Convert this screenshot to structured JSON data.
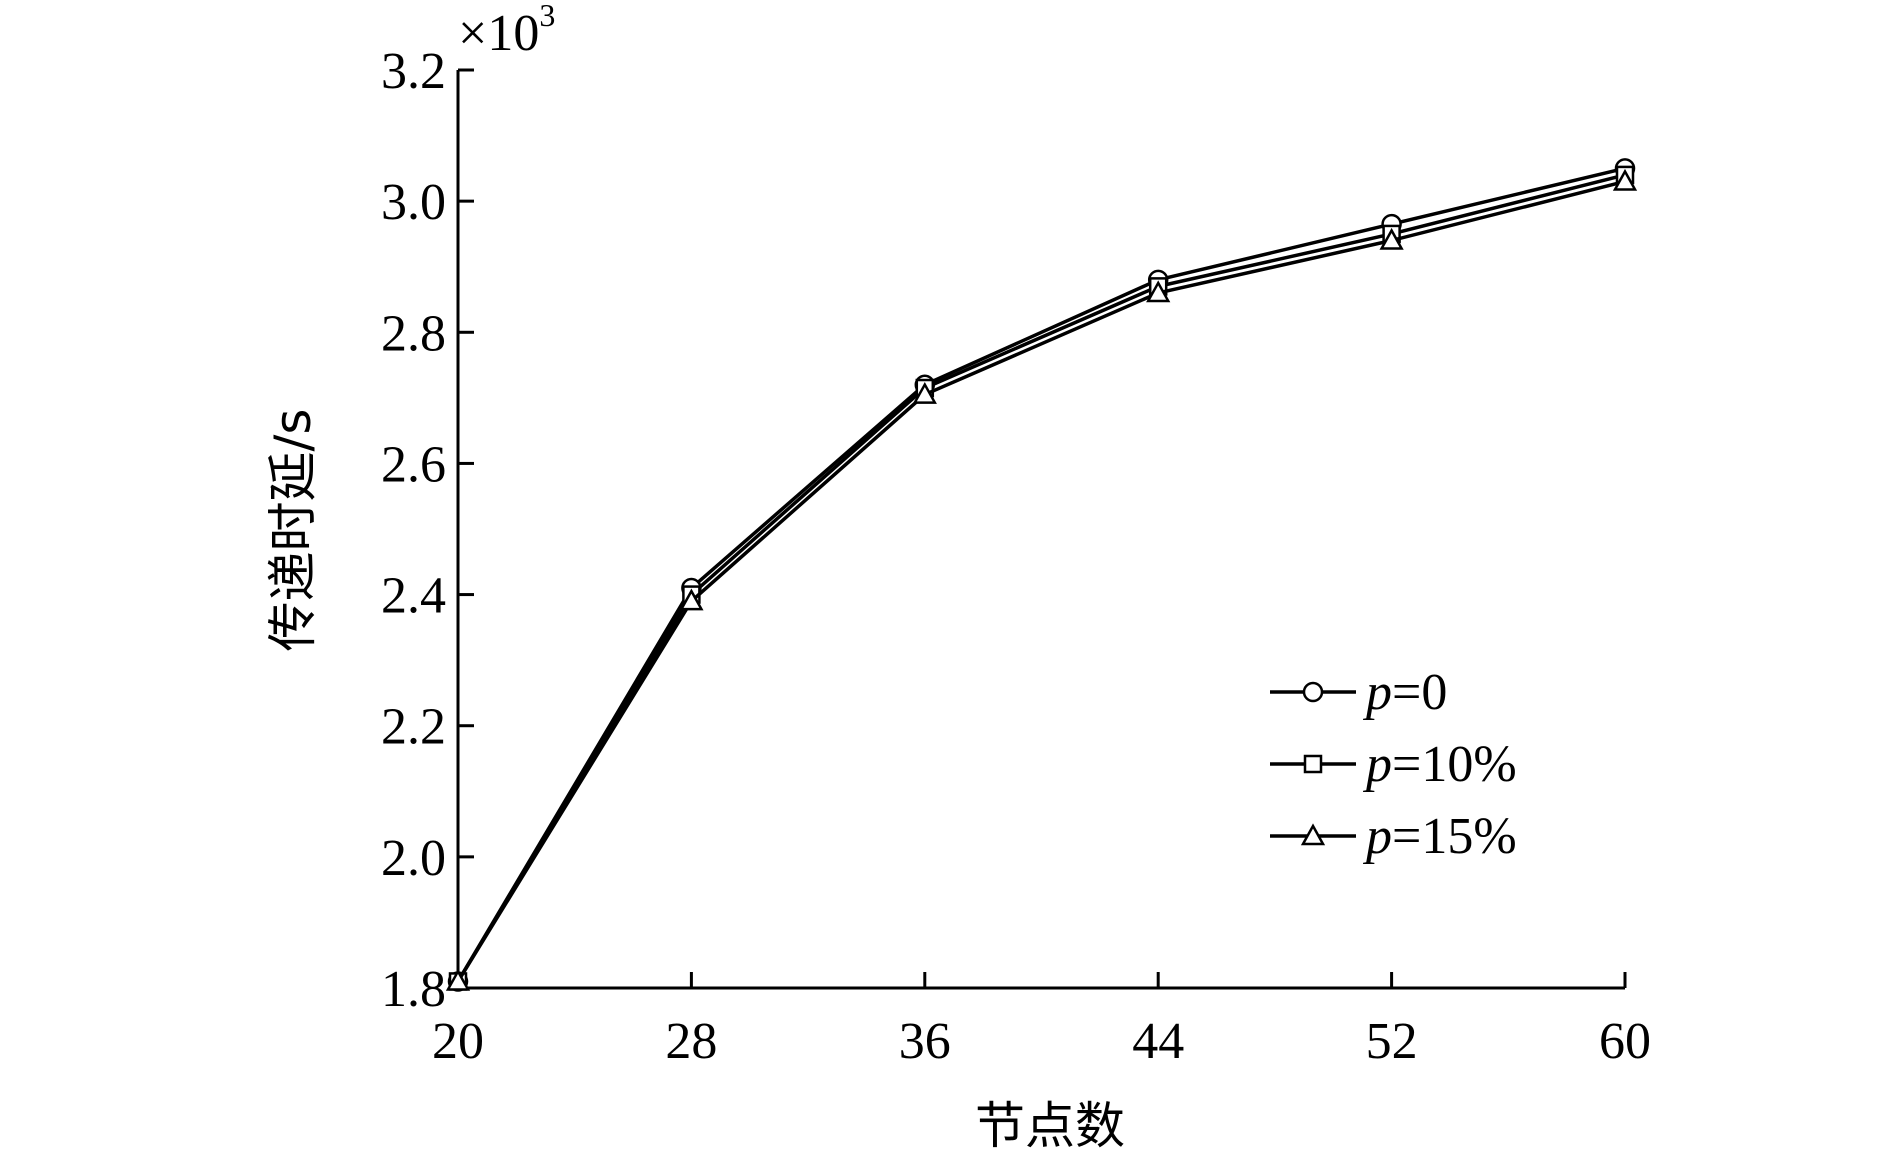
{
  "chart_data": {
    "type": "line",
    "title": "",
    "xlabel": "节点数",
    "ylabel": "传递时延/s",
    "y_multiplier": "×10",
    "y_multiplier_exp": "3",
    "x": [
      20,
      28,
      36,
      44,
      52,
      60
    ],
    "xlim": [
      20,
      60
    ],
    "ylim": [
      1.8,
      3.2
    ],
    "yticks": [
      1.8,
      2.0,
      2.2,
      2.4,
      2.6,
      2.8,
      3.0,
      3.2
    ],
    "ytick_labels": [
      "1.8",
      "2.0",
      "2.2",
      "2.4",
      "2.6",
      "2.8",
      "3.0",
      "3.2"
    ],
    "xtick_labels": [
      "20",
      "28",
      "36",
      "44",
      "52",
      "60"
    ],
    "grid": false,
    "legend_position": "center-right",
    "series": [
      {
        "name": "0",
        "marker": "circle",
        "values": [
          1.81,
          2.41,
          2.72,
          2.88,
          2.965,
          3.05
        ]
      },
      {
        "name": "10%",
        "marker": "square",
        "values": [
          1.81,
          2.4,
          2.715,
          2.87,
          2.95,
          3.04
        ]
      },
      {
        "name": "15%",
        "marker": "triangle",
        "values": [
          1.81,
          2.39,
          2.705,
          2.86,
          2.94,
          3.03
        ]
      }
    ],
    "legend_prefix": "p",
    "legend_eq": "="
  }
}
